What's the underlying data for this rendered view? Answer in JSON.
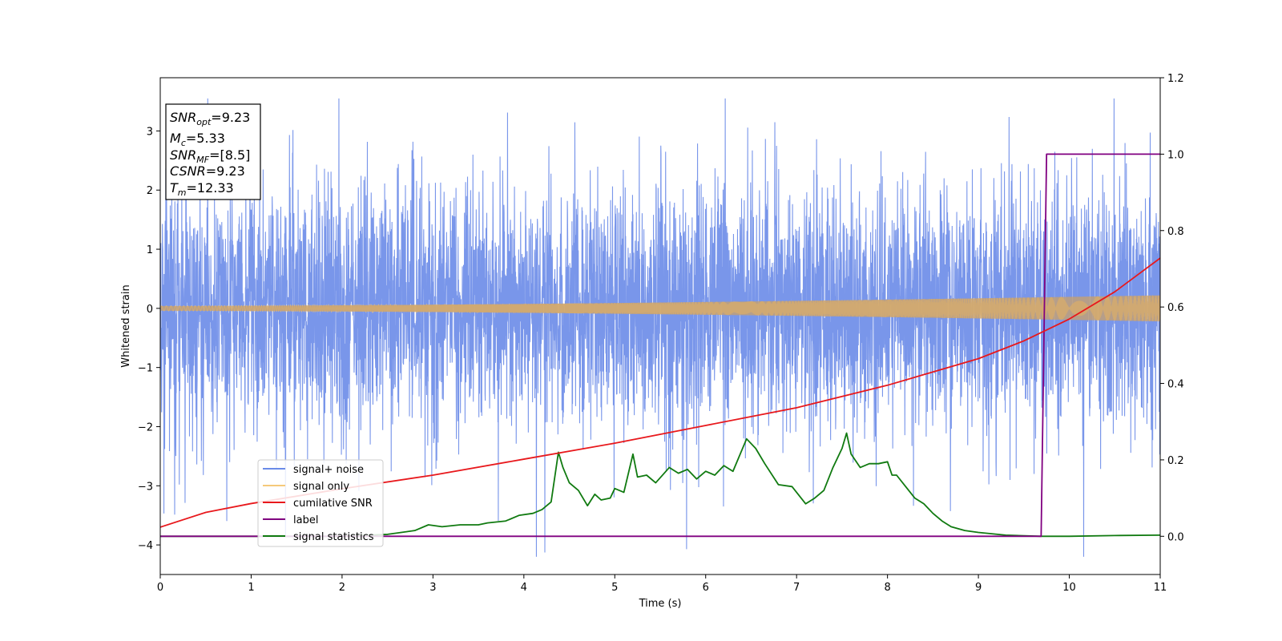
{
  "chart_data": {
    "type": "line",
    "xlabel": "Time (s)",
    "ylabel": "Whitened strain",
    "xlim": [
      0,
      11
    ],
    "ylim_left": [
      -4.5,
      3.9
    ],
    "ylim_right": [
      -0.1,
      1.2
    ],
    "x_ticks": [
      0,
      1,
      2,
      3,
      4,
      5,
      6,
      7,
      8,
      9,
      10,
      11
    ],
    "y_ticks_left": [
      -4,
      -3,
      -2,
      -1,
      0,
      1,
      2,
      3
    ],
    "y_ticks_right": [
      "0.0",
      "0.2",
      "0.4",
      "0.6",
      "0.8",
      "1.0",
      "1.2"
    ],
    "grid": false,
    "legend_position": "lower-left",
    "legend": [
      {
        "label": "signal+ noise",
        "color": "#6a8be8"
      },
      {
        "label": "signal only",
        "color": "#f5c97a"
      },
      {
        "label": "cumilative SNR",
        "color": "#e8181c"
      },
      {
        "label": "label",
        "color": "#800080"
      },
      {
        "label": "signal statistics",
        "color": "#107a10"
      }
    ],
    "annotation": {
      "snr_opt": {
        "base": "SNR",
        "sub": "opt",
        "value": "=9.23"
      },
      "mc": {
        "base": "M",
        "sub": "c",
        "value": "=5.33"
      },
      "snr_mf": {
        "base": "SNR",
        "sub": "MF",
        "value": "=[8.5]"
      },
      "csnr": {
        "base": "CSNR",
        "sub": "",
        "value": "=9.23"
      },
      "tm": {
        "base": "T",
        "sub": "m",
        "value": "=12.33"
      }
    },
    "series": [
      {
        "name": "signal+ noise",
        "axis": "left",
        "color": "#6a8be8",
        "kind": "noise",
        "sigma": 1.05,
        "range": [
          -4.2,
          3.55
        ]
      },
      {
        "name": "signal only",
        "axis": "left",
        "color": "#f5c97a",
        "kind": "chirp",
        "amp_start": 0.04,
        "amp_end": 0.22
      },
      {
        "name": "cumilative SNR",
        "axis": "left",
        "color": "#e8181c",
        "x": [
          0,
          0.5,
          1,
          2,
          3,
          4,
          5,
          6,
          7,
          8,
          9,
          9.5,
          10,
          10.5,
          11
        ],
        "y": [
          -3.7,
          -3.45,
          -3.3,
          -3.05,
          -2.82,
          -2.55,
          -2.28,
          -1.98,
          -1.68,
          -1.3,
          -0.85,
          -0.55,
          -0.18,
          0.28,
          0.85
        ]
      },
      {
        "name": "label",
        "axis": "right",
        "color": "#800080",
        "x": [
          0,
          9.69,
          9.75,
          11
        ],
        "y": [
          0,
          0,
          1,
          1
        ]
      },
      {
        "name": "signal statistics",
        "axis": "right",
        "color": "#107a10",
        "x": [
          0,
          1,
          2,
          2.5,
          2.8,
          2.95,
          3.1,
          3.3,
          3.5,
          3.6,
          3.8,
          3.95,
          4.1,
          4.2,
          4.3,
          4.38,
          4.43,
          4.5,
          4.6,
          4.7,
          4.78,
          4.85,
          4.95,
          5.0,
          5.1,
          5.2,
          5.25,
          5.35,
          5.45,
          5.6,
          5.7,
          5.8,
          5.9,
          6.0,
          6.1,
          6.2,
          6.3,
          6.45,
          6.55,
          6.65,
          6.8,
          6.95,
          7.1,
          7.2,
          7.3,
          7.4,
          7.5,
          7.55,
          7.6,
          7.7,
          7.8,
          7.9,
          8.0,
          8.05,
          8.1,
          8.2,
          8.3,
          8.4,
          8.5,
          8.6,
          8.7,
          8.85,
          9.0,
          9.3,
          9.69,
          10.0,
          10.5,
          11.0
        ],
        "y": [
          0.0,
          0.0,
          0.0,
          0.005,
          0.015,
          0.03,
          0.025,
          0.03,
          0.03,
          0.035,
          0.04,
          0.055,
          0.06,
          0.07,
          0.09,
          0.22,
          0.18,
          0.14,
          0.12,
          0.08,
          0.11,
          0.095,
          0.1,
          0.125,
          0.115,
          0.215,
          0.155,
          0.16,
          0.14,
          0.18,
          0.165,
          0.175,
          0.15,
          0.17,
          0.16,
          0.185,
          0.17,
          0.255,
          0.23,
          0.19,
          0.135,
          0.13,
          0.085,
          0.1,
          0.12,
          0.18,
          0.23,
          0.27,
          0.215,
          0.18,
          0.19,
          0.19,
          0.195,
          0.16,
          0.16,
          0.13,
          0.1,
          0.085,
          0.06,
          0.04,
          0.025,
          0.015,
          0.01,
          0.003,
          0.0,
          0.0,
          0.002,
          0.003
        ]
      }
    ]
  }
}
